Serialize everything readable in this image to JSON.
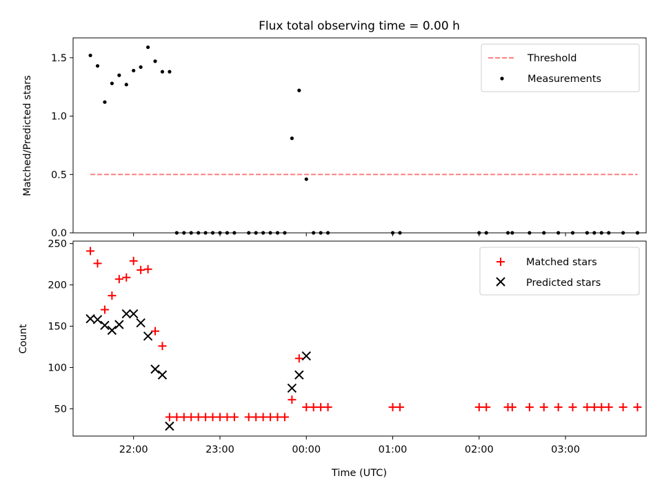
{
  "chart_data": [
    {
      "type": "scatter",
      "title": "Flux total observing time = 0.00 h",
      "xlabel": "",
      "ylabel": "Matched/Predicted stars",
      "ylim": [
        0,
        1.67
      ],
      "xlim": [
        "21:18",
        "03:56"
      ],
      "yticks": [
        "0.0",
        "0.5",
        "1.0",
        "1.5"
      ],
      "grid": false,
      "legend": {
        "placement": "top-right",
        "entries": [
          "Threshold",
          "Measurements"
        ]
      },
      "threshold": {
        "name": "Threshold",
        "value": 0.5,
        "x_start": "21:30",
        "x_end": "03:50",
        "color": "#ff7f7f",
        "style": "dashed"
      },
      "series": [
        {
          "name": "Measurements",
          "color": "#000000",
          "marker": "dot",
          "points": [
            [
              "21:30",
              1.52
            ],
            [
              "21:35",
              1.43
            ],
            [
              "21:40",
              1.12
            ],
            [
              "21:45",
              1.28
            ],
            [
              "21:50",
              1.35
            ],
            [
              "21:55",
              1.27
            ],
            [
              "22:00",
              1.39
            ],
            [
              "22:05",
              1.42
            ],
            [
              "22:10",
              1.59
            ],
            [
              "22:15",
              1.47
            ],
            [
              "22:20",
              1.38
            ],
            [
              "22:25",
              1.38
            ],
            [
              "22:30",
              0.0
            ],
            [
              "22:35",
              0.0
            ],
            [
              "22:40",
              0.0
            ],
            [
              "22:45",
              0.0
            ],
            [
              "22:50",
              0.0
            ],
            [
              "22:55",
              0.0
            ],
            [
              "23:00",
              0.0
            ],
            [
              "23:05",
              0.0
            ],
            [
              "23:10",
              0.0
            ],
            [
              "23:20",
              0.0
            ],
            [
              "23:25",
              0.0
            ],
            [
              "23:30",
              0.0
            ],
            [
              "23:35",
              0.0
            ],
            [
              "23:40",
              0.0
            ],
            [
              "23:45",
              0.0
            ],
            [
              "23:50",
              0.81
            ],
            [
              "23:55",
              1.22
            ],
            [
              "00:00",
              0.46
            ],
            [
              "00:05",
              0.0
            ],
            [
              "00:10",
              0.0
            ],
            [
              "00:15",
              0.0
            ],
            [
              "01:00",
              0.0
            ],
            [
              "01:05",
              0.0
            ],
            [
              "02:00",
              0.0
            ],
            [
              "02:05",
              0.0
            ],
            [
              "02:20",
              0.0
            ],
            [
              "02:23",
              0.0
            ],
            [
              "02:35",
              0.0
            ],
            [
              "02:45",
              0.0
            ],
            [
              "02:55",
              0.0
            ],
            [
              "03:05",
              0.0
            ],
            [
              "03:15",
              0.0
            ],
            [
              "03:20",
              0.0
            ],
            [
              "03:25",
              0.0
            ],
            [
              "03:30",
              0.0
            ],
            [
              "03:40",
              0.0
            ],
            [
              "03:50",
              0.0
            ]
          ]
        }
      ]
    },
    {
      "type": "scatter",
      "title": "",
      "xlabel": "Time (UTC)",
      "ylabel": "Count",
      "ylim": [
        17,
        253
      ],
      "xlim": [
        "21:18",
        "03:56"
      ],
      "yticks": [
        "50",
        "100",
        "150",
        "200",
        "250"
      ],
      "xticks": [
        "22:00",
        "23:00",
        "00:00",
        "01:00",
        "02:00",
        "03:00"
      ],
      "grid": false,
      "legend": {
        "placement": "top-right",
        "entries": [
          "Matched stars",
          "Predicted stars"
        ]
      },
      "series": [
        {
          "name": "Matched stars",
          "color": "#ff0000",
          "marker": "plus",
          "points": [
            [
              "21:30",
              241
            ],
            [
              "21:35",
              226
            ],
            [
              "21:40",
              170
            ],
            [
              "21:45",
              187
            ],
            [
              "21:50",
              207
            ],
            [
              "21:55",
              209
            ],
            [
              "22:00",
              229
            ],
            [
              "22:05",
              218
            ],
            [
              "22:10",
              219
            ],
            [
              "22:15",
              144
            ],
            [
              "22:20",
              126
            ],
            [
              "22:25",
              40
            ],
            [
              "22:30",
              40
            ],
            [
              "22:35",
              40
            ],
            [
              "22:40",
              40
            ],
            [
              "22:45",
              40
            ],
            [
              "22:50",
              40
            ],
            [
              "22:55",
              40
            ],
            [
              "23:00",
              40
            ],
            [
              "23:05",
              40
            ],
            [
              "23:10",
              40
            ],
            [
              "23:20",
              40
            ],
            [
              "23:25",
              40
            ],
            [
              "23:30",
              40
            ],
            [
              "23:35",
              40
            ],
            [
              "23:40",
              40
            ],
            [
              "23:45",
              40
            ],
            [
              "23:50",
              61
            ],
            [
              "23:55",
              111
            ],
            [
              "00:00",
              52
            ],
            [
              "00:05",
              52
            ],
            [
              "00:10",
              52
            ],
            [
              "00:15",
              52
            ],
            [
              "01:00",
              52
            ],
            [
              "01:05",
              52
            ],
            [
              "02:00",
              52
            ],
            [
              "02:05",
              52
            ],
            [
              "02:20",
              52
            ],
            [
              "02:23",
              52
            ],
            [
              "02:35",
              52
            ],
            [
              "02:45",
              52
            ],
            [
              "02:55",
              52
            ],
            [
              "03:05",
              52
            ],
            [
              "03:15",
              52
            ],
            [
              "03:20",
              52
            ],
            [
              "03:25",
              52
            ],
            [
              "03:30",
              52
            ],
            [
              "03:40",
              52
            ],
            [
              "03:50",
              52
            ]
          ]
        },
        {
          "name": "Predicted stars",
          "color": "#000000",
          "marker": "x",
          "points": [
            [
              "21:30",
              159
            ],
            [
              "21:35",
              158
            ],
            [
              "21:40",
              151
            ],
            [
              "21:45",
              145
            ],
            [
              "21:50",
              152
            ],
            [
              "21:55",
              165
            ],
            [
              "22:00",
              165
            ],
            [
              "22:05",
              154
            ],
            [
              "22:10",
              138
            ],
            [
              "22:15",
              98
            ],
            [
              "22:20",
              91
            ],
            [
              "22:25",
              29
            ],
            [
              "23:50",
              75
            ],
            [
              "23:55",
              91
            ],
            [
              "00:00",
              114
            ]
          ]
        }
      ]
    }
  ]
}
